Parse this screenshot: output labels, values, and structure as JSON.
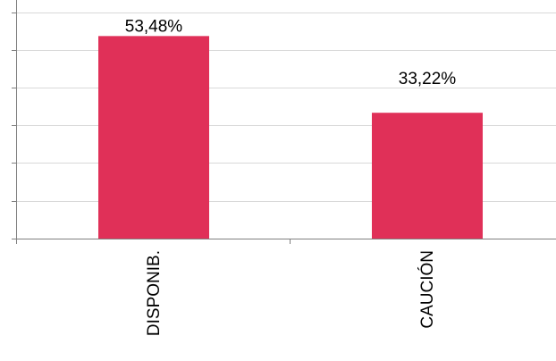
{
  "chart_data": {
    "type": "bar",
    "categories": [
      "DISPONIB.",
      "CAUCIÓN"
    ],
    "values": [
      53.48,
      33.22
    ],
    "value_labels": [
      "53,48%",
      "33,22%"
    ],
    "ylim": [
      0,
      63
    ],
    "grid": true,
    "bar_color": "#e03058",
    "grid_color": "#d9d9d9",
    "axis_color": "#808080"
  }
}
